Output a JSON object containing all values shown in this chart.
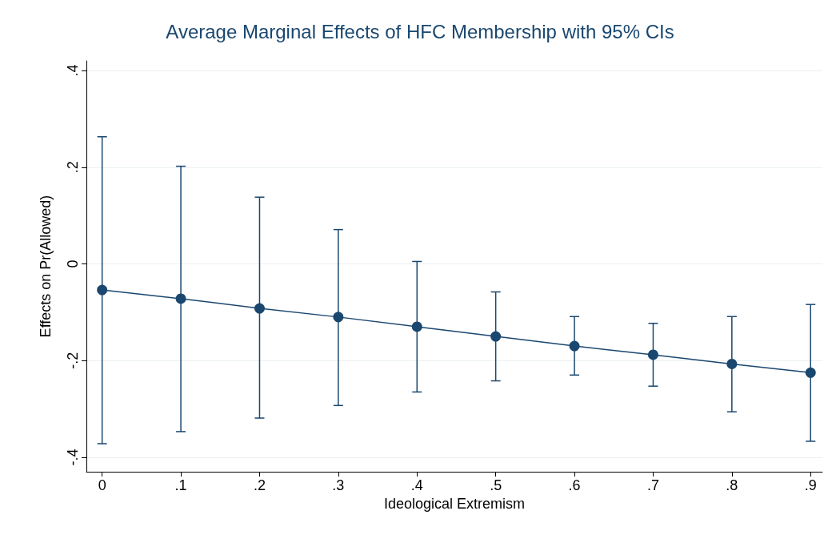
{
  "chart_data": {
    "type": "line",
    "title": "Average Marginal Effects of HFC Membership with 95% CIs",
    "xlabel": "Ideological Extremism",
    "ylabel": "Effects on Pr(Allowed)",
    "x": [
      0,
      0.1,
      0.2,
      0.3,
      0.4,
      0.5,
      0.6,
      0.7,
      0.8,
      0.9
    ],
    "series": [
      {
        "color": "#1a476f",
        "values": [
          -0.054,
          -0.072,
          -0.092,
          -0.11,
          -0.13,
          -0.15,
          -0.17,
          -0.188,
          -0.207,
          -0.225
        ],
        "errors": [
          [
            -0.372,
            0.263
          ],
          [
            -0.347,
            0.202
          ],
          [
            -0.319,
            0.138
          ],
          [
            -0.293,
            0.071
          ],
          [
            -0.265,
            0.005
          ],
          [
            -0.242,
            -0.058
          ],
          [
            -0.23,
            -0.109
          ],
          [
            -0.253,
            -0.123
          ],
          [
            -0.306,
            -0.109
          ],
          [
            -0.367,
            -0.084
          ]
        ]
      }
    ],
    "xlim": [
      -0.02,
      0.915
    ],
    "ylim": [
      -0.43,
      0.42
    ],
    "xticks": [
      0,
      {
        "value": 0.1,
        "label": ".1"
      },
      {
        "value": 0.2,
        "label": ".2"
      },
      {
        "value": 0.3,
        "label": ".3"
      },
      {
        "value": 0.4,
        "label": ".4"
      },
      {
        "value": 0.5,
        "label": ".5"
      },
      {
        "value": 0.6,
        "label": ".6"
      },
      {
        "value": 0.7,
        "label": ".7"
      },
      {
        "value": 0.8,
        "label": ".8"
      },
      {
        "value": 0.9,
        "label": ".9"
      }
    ],
    "yticks": [
      {
        "value": -0.4,
        "label": "-.4"
      },
      {
        "value": -0.2,
        "label": "-.2"
      },
      0,
      {
        "value": 0.2,
        "label": ".2"
      },
      {
        "value": 0.4,
        "label": ".4"
      }
    ],
    "grid": "y",
    "marker": "circle",
    "line_style": "solid"
  }
}
